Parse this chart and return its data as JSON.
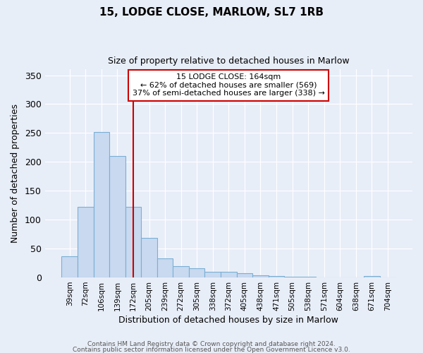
{
  "title": "15, LODGE CLOSE, MARLOW, SL7 1RB",
  "subtitle": "Size of property relative to detached houses in Marlow",
  "xlabel": "Distribution of detached houses by size in Marlow",
  "ylabel": "Number of detached properties",
  "categories": [
    "39sqm",
    "72sqm",
    "106sqm",
    "139sqm",
    "172sqm",
    "205sqm",
    "239sqm",
    "272sqm",
    "305sqm",
    "338sqm",
    "372sqm",
    "405sqm",
    "438sqm",
    "471sqm",
    "505sqm",
    "538sqm",
    "571sqm",
    "604sqm",
    "638sqm",
    "671sqm",
    "704sqm"
  ],
  "values": [
    37,
    122,
    252,
    210,
    122,
    68,
    33,
    20,
    16,
    10,
    10,
    8,
    4,
    2,
    1,
    1,
    0,
    0,
    0,
    3,
    0
  ],
  "bar_color": "#c8d9f0",
  "bar_edge_color": "#7aafd4",
  "background_color": "#e8eef8",
  "grid_color": "#ffffff",
  "vline_x": 4.0,
  "vline_color": "#cc0000",
  "annotation_text": "15 LODGE CLOSE: 164sqm\n← 62% of detached houses are smaller (569)\n37% of semi-detached houses are larger (338) →",
  "annotation_box_color": "#ffffff",
  "annotation_box_edge": "#cc0000",
  "ylim": [
    0,
    360
  ],
  "yticks": [
    0,
    50,
    100,
    150,
    200,
    250,
    300,
    350
  ],
  "footer_line1": "Contains HM Land Registry data © Crown copyright and database right 2024.",
  "footer_line2": "Contains public sector information licensed under the Open Government Licence v3.0."
}
